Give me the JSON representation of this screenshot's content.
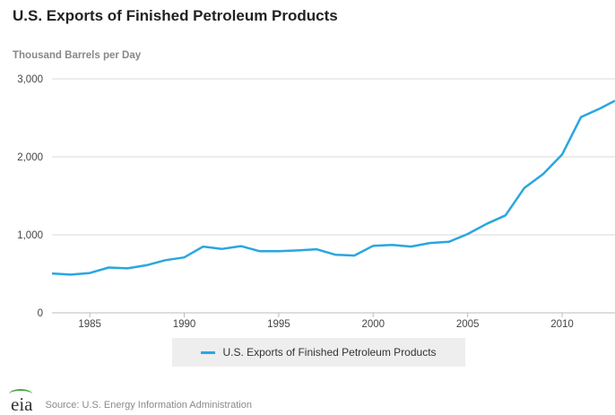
{
  "title": "U.S. Exports of Finished Petroleum Products",
  "legend_label": "U.S. Exports of Finished Petroleum Products",
  "source": "Source: U.S. Energy Information Administration",
  "logo_text": "eia",
  "chart_data": {
    "type": "line",
    "ylabel": "Thousand Barrels per Day",
    "xlim": [
      1983,
      2012.8
    ],
    "ylim": [
      0,
      3000
    ],
    "grid": true,
    "legend_position": "bottom",
    "x_ticks": [
      1985,
      1990,
      1995,
      2000,
      2005,
      2010
    ],
    "y_ticks": [
      0,
      1000,
      2000,
      3000
    ],
    "y_tick_labels": [
      "0",
      "1,000",
      "2,000",
      "3,000"
    ],
    "series": [
      {
        "name": "U.S. Exports of Finished Petroleum Products",
        "color": "#2aa6e0",
        "x": [
          1983,
          1984,
          1985,
          1986,
          1987,
          1988,
          1989,
          1990,
          1991,
          1992,
          1993,
          1994,
          1995,
          1996,
          1997,
          1998,
          1999,
          2000,
          2001,
          2002,
          2003,
          2004,
          2005,
          2006,
          2007,
          2008,
          2009,
          2010,
          2011,
          2012,
          2012.8
        ],
        "y": [
          505,
          490,
          510,
          580,
          570,
          610,
          675,
          710,
          850,
          820,
          855,
          790,
          790,
          800,
          815,
          745,
          735,
          860,
          870,
          850,
          895,
          910,
          1010,
          1140,
          1250,
          1600,
          1780,
          2030,
          2510,
          2620,
          2720
        ]
      }
    ]
  }
}
